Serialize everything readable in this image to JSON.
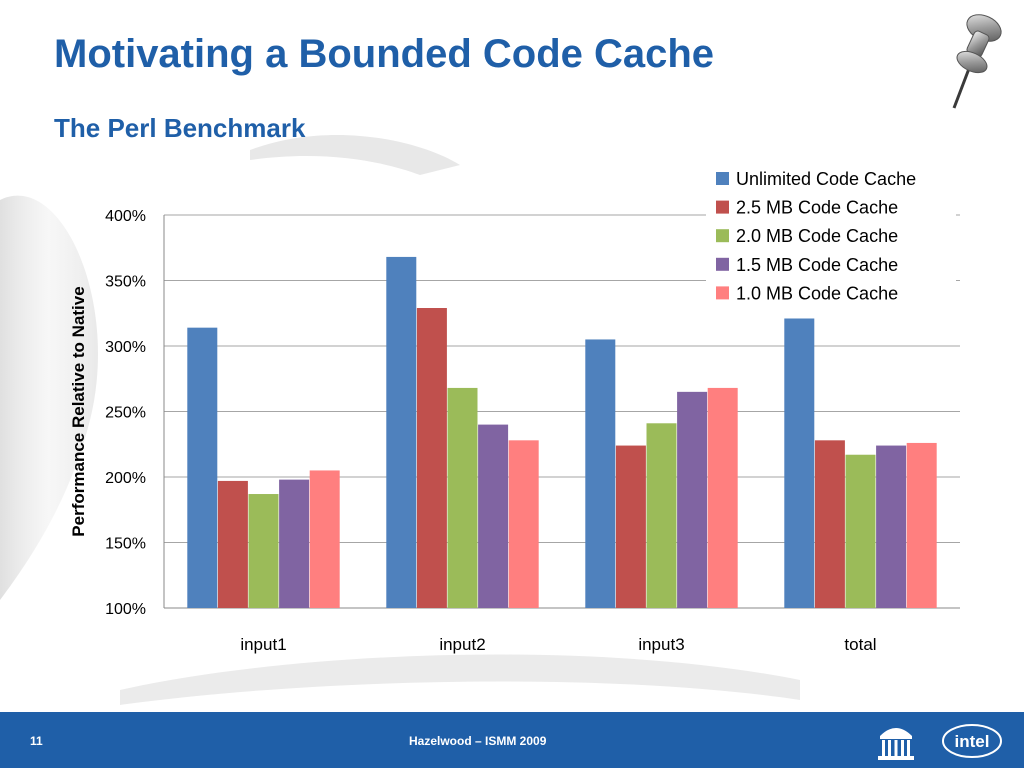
{
  "slide": {
    "title": "Motivating a Bounded Code Cache",
    "subtitle": "The Perl Benchmark",
    "page_number": "11",
    "footer_text": "Hazelwood – ISMM 2009",
    "brand_color": "#1f5fa8",
    "logo_text": "intel",
    "icons": [
      "pushpin-icon",
      "university-logo-icon",
      "intel-logo-icon"
    ]
  },
  "chart_data": {
    "type": "bar",
    "title": "",
    "xlabel": "",
    "ylabel": "Performance Relative to Native",
    "ylim": [
      100,
      400
    ],
    "yticks": [
      100,
      150,
      200,
      250,
      300,
      350,
      400
    ],
    "ytick_labels": [
      "100%",
      "150%",
      "200%",
      "250%",
      "300%",
      "350%",
      "400%"
    ],
    "grid": true,
    "legend_position": "top-right",
    "categories": [
      "input1",
      "input2",
      "input3",
      "total"
    ],
    "series": [
      {
        "name": "Unlimited Code Cache",
        "color": "#4f81bd",
        "values": [
          314,
          368,
          305,
          321
        ]
      },
      {
        "name": "2.5 MB Code Cache",
        "color": "#c0504d",
        "values": [
          197,
          329,
          224,
          228
        ]
      },
      {
        "name": "2.0 MB Code Cache",
        "color": "#9bbb59",
        "values": [
          187,
          268,
          241,
          217
        ]
      },
      {
        "name": "1.5 MB Code Cache",
        "color": "#8064a2",
        "values": [
          198,
          240,
          265,
          224
        ]
      },
      {
        "name": "1.0 MB Code Cache",
        "color": "#ff7f7f",
        "values": [
          205,
          228,
          268,
          226
        ]
      }
    ]
  }
}
